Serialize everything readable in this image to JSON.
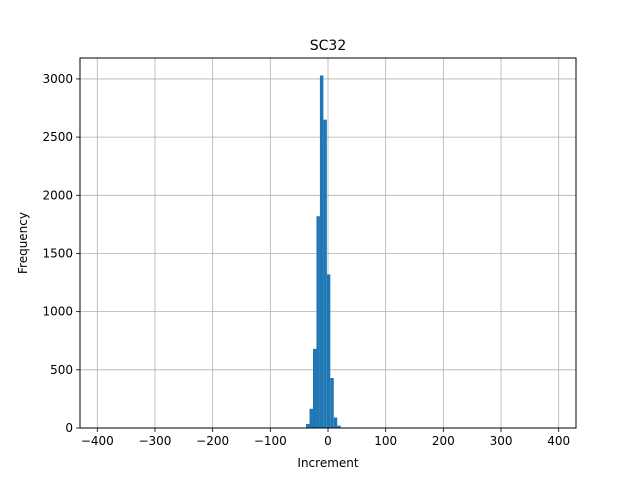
{
  "chart_data": {
    "type": "bar",
    "title": "SC32",
    "xlabel": "Increment",
    "ylabel": "Frequency",
    "xlim": [
      -430,
      430
    ],
    "ylim": [
      0,
      3180
    ],
    "grid": true,
    "bar_color": "#1f77b4",
    "x_ticks": [
      -400,
      -300,
      -200,
      -100,
      0,
      100,
      200,
      300,
      400
    ],
    "x_tick_labels": [
      "−400",
      "−300",
      "−200",
      "−100",
      "0",
      "100",
      "200",
      "300",
      "400"
    ],
    "y_ticks": [
      0,
      500,
      1000,
      1500,
      2000,
      2500,
      3000
    ],
    "y_tick_labels": [
      "0",
      "500",
      "1000",
      "1500",
      "2000",
      "2500",
      "3000"
    ],
    "bins": [
      {
        "x0": -38,
        "x1": -32,
        "value": 35
      },
      {
        "x0": -32,
        "x1": -26,
        "value": 165
      },
      {
        "x0": -26,
        "x1": -20,
        "value": 680
      },
      {
        "x0": -20,
        "x1": -14,
        "value": 1820
      },
      {
        "x0": -14,
        "x1": -8,
        "value": 3030
      },
      {
        "x0": -8,
        "x1": -2,
        "value": 2650
      },
      {
        "x0": -2,
        "x1": 4,
        "value": 1320
      },
      {
        "x0": 4,
        "x1": 10,
        "value": 430
      },
      {
        "x0": 10,
        "x1": 16,
        "value": 90
      },
      {
        "x0": 16,
        "x1": 22,
        "value": 20
      }
    ]
  }
}
